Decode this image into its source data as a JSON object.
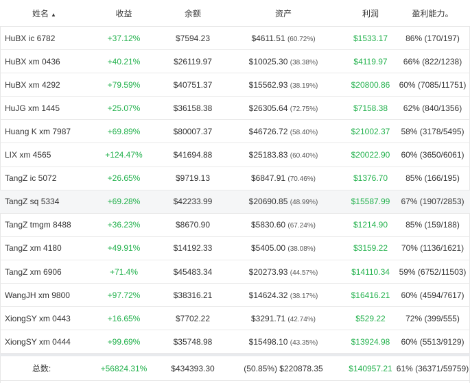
{
  "headers": {
    "name": "姓名",
    "gain": "收益",
    "balance": "余额",
    "assets": "资产",
    "profit": "利润",
    "rate": "盈利能力。"
  },
  "sort_indicator": "▲",
  "rows": [
    {
      "name": "HuBX ic 6782",
      "gain": "+37.12%",
      "balance": "$7594.23",
      "asset": "$4611.51",
      "asset_pct": "(60.72%)",
      "profit": "$1533.17",
      "rate": "86% (170/197)"
    },
    {
      "name": "HuBX xm 0436",
      "gain": "+40.21%",
      "balance": "$26119.97",
      "asset": "$10025.30",
      "asset_pct": "(38.38%)",
      "profit": "$4119.97",
      "rate": "66% (822/1238)"
    },
    {
      "name": "HuBX xm 4292",
      "gain": "+79.59%",
      "balance": "$40751.37",
      "asset": "$15562.93",
      "asset_pct": "(38.19%)",
      "profit": "$20800.86",
      "rate": "60% (7085/11751)"
    },
    {
      "name": "HuJG xm 1445",
      "gain": "+25.07%",
      "balance": "$36158.38",
      "asset": "$26305.64",
      "asset_pct": "(72.75%)",
      "profit": "$7158.38",
      "rate": "62% (840/1356)"
    },
    {
      "name": "Huang K xm 7987",
      "gain": "+69.89%",
      "balance": "$80007.37",
      "asset": "$46726.72",
      "asset_pct": "(58.40%)",
      "profit": "$21002.37",
      "rate": "58% (3178/5495)"
    },
    {
      "name": "LIX xm 4565",
      "gain": "+124.47%",
      "balance": "$41694.88",
      "asset": "$25183.83",
      "asset_pct": "(60.40%)",
      "profit": "$20022.90",
      "rate": "60% (3650/6061)"
    },
    {
      "name": "TangZ ic 5072",
      "gain": "+26.65%",
      "balance": "$9719.13",
      "asset": "$6847.91",
      "asset_pct": "(70.46%)",
      "profit": "$1376.70",
      "rate": "85% (166/195)"
    },
    {
      "name": "TangZ sq 5334",
      "gain": "+69.28%",
      "balance": "$42233.99",
      "asset": "$20690.85",
      "asset_pct": "(48.99%)",
      "profit": "$15587.99",
      "rate": "67% (1907/2853)"
    },
    {
      "name": "TangZ tmgm 8488",
      "gain": "+36.23%",
      "balance": "$8670.90",
      "asset": "$5830.60",
      "asset_pct": "(67.24%)",
      "profit": "$1214.90",
      "rate": "85% (159/188)"
    },
    {
      "name": "TangZ xm 4180",
      "gain": "+49.91%",
      "balance": "$14192.33",
      "asset": "$5405.00",
      "asset_pct": "(38.08%)",
      "profit": "$3159.22",
      "rate": "70% (1136/1621)"
    },
    {
      "name": "TangZ xm 6906",
      "gain": "+71.4%",
      "balance": "$45483.34",
      "asset": "$20273.93",
      "asset_pct": "(44.57%)",
      "profit": "$14110.34",
      "rate": "59% (6752/11503)"
    },
    {
      "name": "WangJH xm 9800",
      "gain": "+97.72%",
      "balance": "$38316.21",
      "asset": "$14624.32",
      "asset_pct": "(38.17%)",
      "profit": "$16416.21",
      "rate": "60% (4594/7617)"
    },
    {
      "name": "XiongSY xm 0443",
      "gain": "+16.65%",
      "balance": "$7702.22",
      "asset": "$3291.71",
      "asset_pct": "(42.74%)",
      "profit": "$529.22",
      "rate": "72% (399/555)"
    },
    {
      "name": "XiongSY xm 0444",
      "gain": "+99.69%",
      "balance": "$35748.98",
      "asset": "$15498.10",
      "asset_pct": "(43.35%)",
      "profit": "$13924.98",
      "rate": "60% (5513/9129)"
    }
  ],
  "highlighted_row": 7,
  "total": {
    "label": "总数:",
    "gain": "+56824.31%",
    "balance": "$434393.30",
    "asset": "(50.85%) $220878.35",
    "profit": "$140957.21",
    "rate": "61% (36371/59759)"
  },
  "colors": {
    "positive": "#22b14c",
    "text": "#333333",
    "row_highlight": "#f5f6f7",
    "border": "#e9e9e9"
  }
}
